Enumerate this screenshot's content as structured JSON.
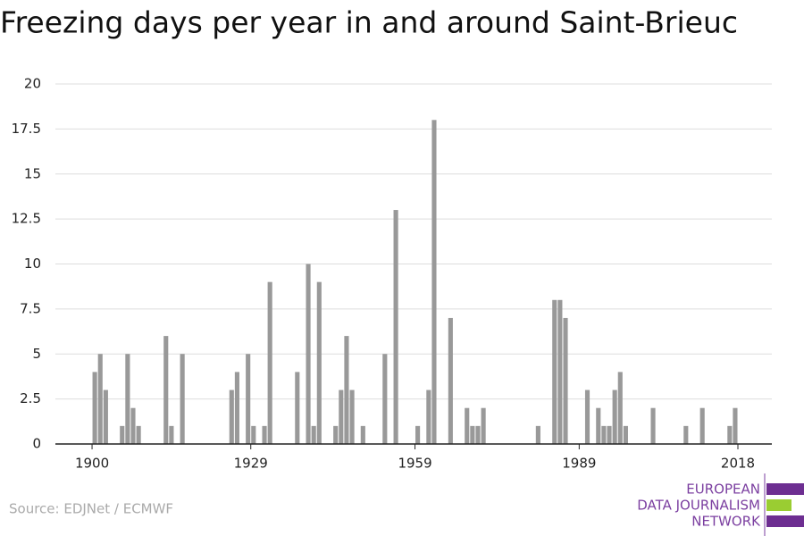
{
  "chart_data": {
    "type": "bar",
    "title": "Freezing days per year in and around Saint-Brieuc",
    "source": "Source: EDJNet / ECMWF",
    "logo": [
      "EUROPEAN",
      "DATA JOURNALISM",
      "NETWORK"
    ],
    "color": "#999999",
    "x": [
      1900,
      1901,
      1902,
      1905,
      1906,
      1907,
      1908,
      1913,
      1914,
      1916,
      1925,
      1926,
      1928,
      1929,
      1931,
      1932,
      1937,
      1939,
      1940,
      1941,
      1944,
      1945,
      1946,
      1947,
      1949,
      1953,
      1955,
      1959,
      1961,
      1962,
      1965,
      1968,
      1969,
      1970,
      1971,
      1981,
      1984,
      1985,
      1986,
      1990,
      1992,
      1993,
      1994,
      1995,
      1996,
      1997,
      2002,
      2008,
      2011,
      2016,
      2017
    ],
    "values": [
      4,
      5,
      3,
      1,
      5,
      2,
      1,
      6,
      1,
      5,
      3,
      4,
      5,
      1,
      1,
      9,
      4,
      10,
      1,
      9,
      1,
      3,
      6,
      3,
      1,
      5,
      13,
      1,
      3,
      18,
      7,
      2,
      1,
      1,
      2,
      1,
      8,
      8,
      7,
      3,
      2,
      1,
      1,
      3,
      4,
      1,
      2,
      1,
      2,
      1,
      2
    ],
    "xlim": [
      1893.3,
      2024.2
    ],
    "xticks": [
      1900,
      1929,
      1959,
      1989,
      2018
    ],
    "ylim": [
      0,
      20
    ],
    "yticks": [
      0,
      2.5,
      5,
      7.5,
      10,
      12.5,
      15,
      17.5,
      20
    ],
    "grid": true
  }
}
